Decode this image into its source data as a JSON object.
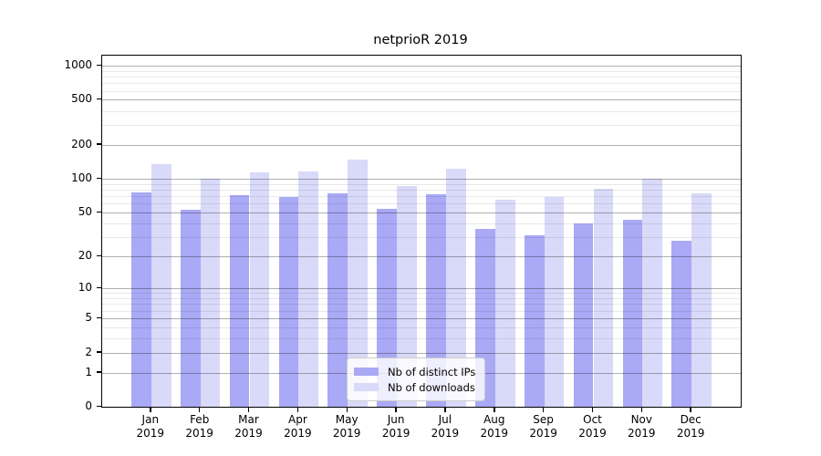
{
  "chart_data": {
    "type": "bar",
    "title": "netprioR 2019",
    "months": [
      "Jan",
      "Feb",
      "Mar",
      "Apr",
      "May",
      "Jun",
      "Jul",
      "Aug",
      "Sep",
      "Oct",
      "Nov",
      "Dec"
    ],
    "year_label": "2019",
    "series": [
      {
        "name": "Nb of distinct IPs",
        "color": "#a9a9f6",
        "values": [
          76,
          53,
          72,
          69,
          75,
          54,
          73,
          36,
          31,
          40,
          43,
          28
        ]
      },
      {
        "name": "Nb of downloads",
        "color": "#d9d9f9",
        "values": [
          135,
          100,
          114,
          116,
          148,
          87,
          123,
          65,
          69,
          81,
          101,
          74
        ]
      }
    ],
    "xlabel": "",
    "ylabel": "",
    "yscale": "log10(1+y)",
    "yticks": [
      0,
      1,
      2,
      5,
      10,
      20,
      50,
      100,
      200,
      500,
      1000
    ],
    "minor_yticks": [
      3,
      4,
      6,
      7,
      8,
      9,
      30,
      40,
      60,
      70,
      80,
      90,
      300,
      400,
      600,
      700,
      800,
      900
    ],
    "ylim": [
      0,
      1225
    ],
    "grid": true,
    "legend_position": "lower center"
  }
}
